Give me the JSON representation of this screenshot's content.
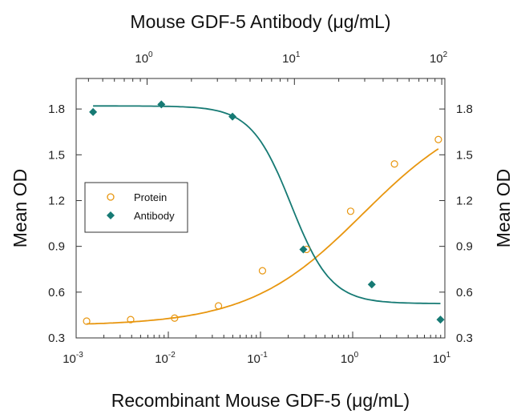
{
  "chart_data": {
    "type": "scatter",
    "top_xlabel": "Mouse GDF-5 Antibody (μg/mL)",
    "bottom_xlabel": "Recombinant Mouse GDF-5 (μg/mL)",
    "left_ylabel": "Mean OD",
    "right_ylabel": "Mean OD",
    "bottom_xscale": "log",
    "bottom_xlim": [
      0.001,
      10
    ],
    "bottom_xticks": [
      {
        "base": "10",
        "exp": "-3"
      },
      {
        "base": "10",
        "exp": "-2"
      },
      {
        "base": "10",
        "exp": "-1"
      },
      {
        "base": "10",
        "exp": "0"
      },
      {
        "base": "10",
        "exp": "1"
      }
    ],
    "top_xscale": "log",
    "top_xlim": [
      0.33,
      105
    ],
    "top_xticks": [
      {
        "base": "10",
        "exp": "0"
      },
      {
        "base": "10",
        "exp": "1"
      },
      {
        "base": "10",
        "exp": "2"
      }
    ],
    "ylim": [
      0.3,
      2.0
    ],
    "yticks": [
      "0.3",
      "0.6",
      "0.9",
      "1.2",
      "1.5",
      "1.8"
    ],
    "legend_position": "left, middle",
    "grid": false,
    "series": [
      {
        "name": "Protein",
        "marker": "open-circle",
        "color": "#E8960F",
        "x_axis": "bottom",
        "x": [
          0.0013,
          0.0039,
          0.0117,
          0.035,
          0.105,
          0.316,
          0.95,
          2.84,
          8.5
        ],
        "y": [
          0.41,
          0.42,
          0.43,
          0.51,
          0.74,
          0.88,
          1.13,
          1.44,
          1.6
        ],
        "fit": {
          "bottom": 0.38,
          "top": 1.85,
          "ec50": 1.3,
          "hill": 0.7
        }
      },
      {
        "name": "Antibody",
        "marker": "filled-diamond",
        "color": "#167A74",
        "x_axis": "top",
        "x": [
          0.43,
          1.25,
          3.8,
          11.5,
          33.5,
          98
        ],
        "y": [
          1.78,
          1.83,
          1.75,
          0.88,
          0.65,
          0.42
        ],
        "fit": {
          "bottom": 0.525,
          "top": 1.82,
          "ec50": 9.5,
          "hill": 3.2
        }
      }
    ]
  }
}
